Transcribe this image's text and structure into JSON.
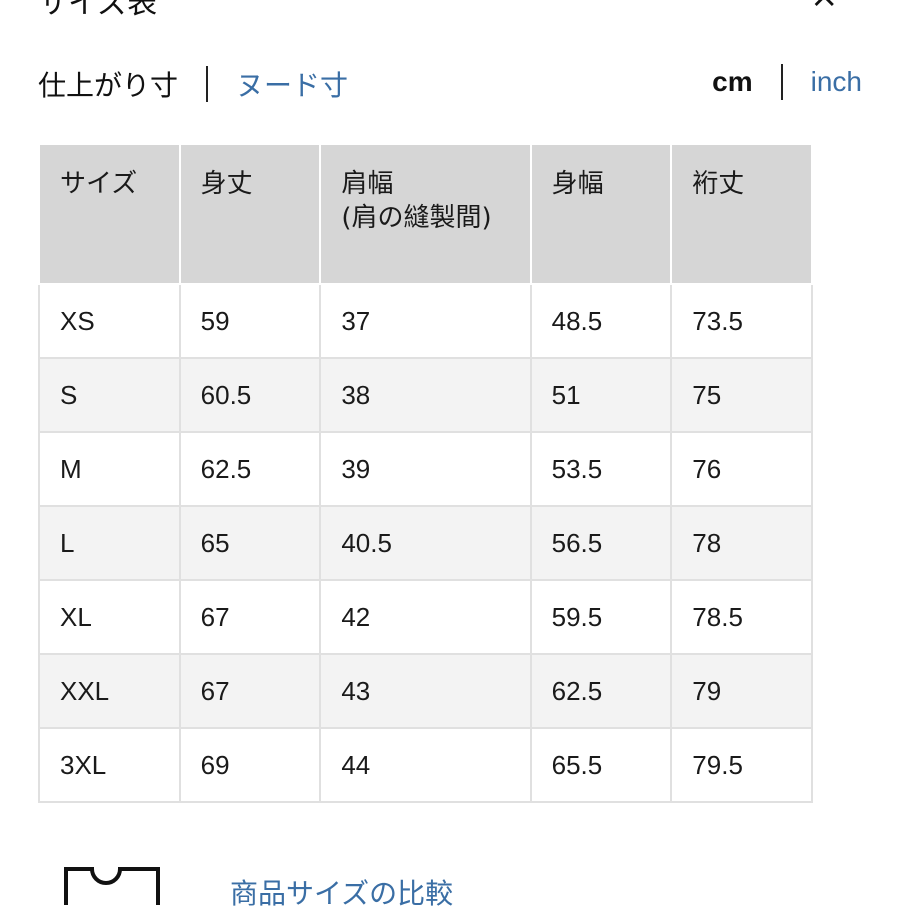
{
  "header": {
    "title": "サイズ表",
    "close_icon": "close-icon"
  },
  "measure_tabs": [
    {
      "label": "仕上がり寸",
      "active": true
    },
    {
      "label": "ヌード寸",
      "active": false
    }
  ],
  "unit_tabs": [
    {
      "label": "cm",
      "active": true
    },
    {
      "label": "inch",
      "active": false
    }
  ],
  "table": {
    "headers": [
      "サイズ",
      "身丈",
      "肩幅\n(肩の縫製間)",
      "身幅",
      "裄丈"
    ],
    "rows": [
      [
        "XS",
        "59",
        "37",
        "48.5",
        "73.5"
      ],
      [
        "S",
        "60.5",
        "38",
        "51",
        "75"
      ],
      [
        "M",
        "62.5",
        "39",
        "53.5",
        "76"
      ],
      [
        "L",
        "65",
        "40.5",
        "56.5",
        "78"
      ],
      [
        "XL",
        "67",
        "42",
        "59.5",
        "78.5"
      ],
      [
        "XXL",
        "67",
        "43",
        "62.5",
        "79"
      ],
      [
        "3XL",
        "69",
        "44",
        "65.5",
        "79.5"
      ]
    ]
  },
  "compare": {
    "label": "商品サイズの比較",
    "icon": "shirt-icon"
  },
  "colors": {
    "link": "#3a6ea5",
    "header_bg": "#d6d6d6",
    "row_alt": "#f3f3f3"
  }
}
